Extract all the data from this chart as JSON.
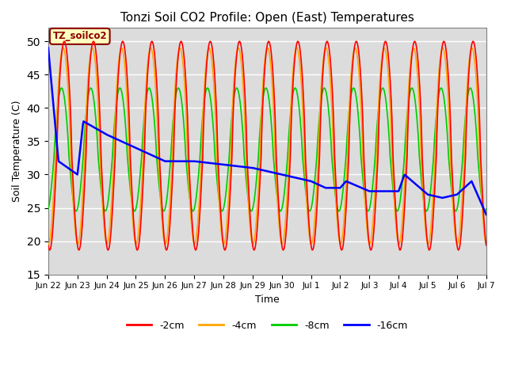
{
  "title": "Tonzi Soil CO2 Profile: Open (East) Temperatures",
  "xlabel": "Time",
  "ylabel": "Soil Temperature (C)",
  "ylim": [
    15,
    52
  ],
  "yticks": [
    15,
    20,
    25,
    30,
    35,
    40,
    45,
    50
  ],
  "legend_label": "TZ_soilco2",
  "series": {
    "-2cm": {
      "color": "#FF0000",
      "linewidth": 1.2
    },
    "-4cm": {
      "color": "#FFA500",
      "linewidth": 1.2
    },
    "-8cm": {
      "color": "#00CC00",
      "linewidth": 1.2
    },
    "-16cm": {
      "color": "#0000FF",
      "linewidth": 1.8
    }
  },
  "tick_labels": [
    "Jun 22",
    "Jun 23",
    "Jun 24",
    "Jun 25",
    "Jun 26",
    "Jun 27",
    "Jun 28",
    "Jun 29",
    "Jun 30",
    "Jul 1",
    "Jul 2",
    "Jul 3",
    "Jul 4",
    "Jul 5",
    "Jul 6",
    "Jul 7"
  ],
  "plot_bg_color": "#DCDCDC"
}
